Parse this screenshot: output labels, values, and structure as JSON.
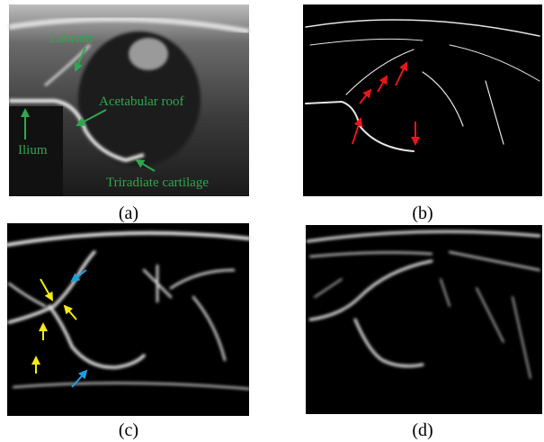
{
  "panels": [
    {
      "caption": "(a)",
      "labels": [
        "Labrum",
        "Acetabular roof",
        "Ilium",
        "Triradiate cartilage"
      ]
    },
    {
      "caption": "(b)"
    },
    {
      "caption": "(c)"
    },
    {
      "caption": "(d)"
    }
  ]
}
